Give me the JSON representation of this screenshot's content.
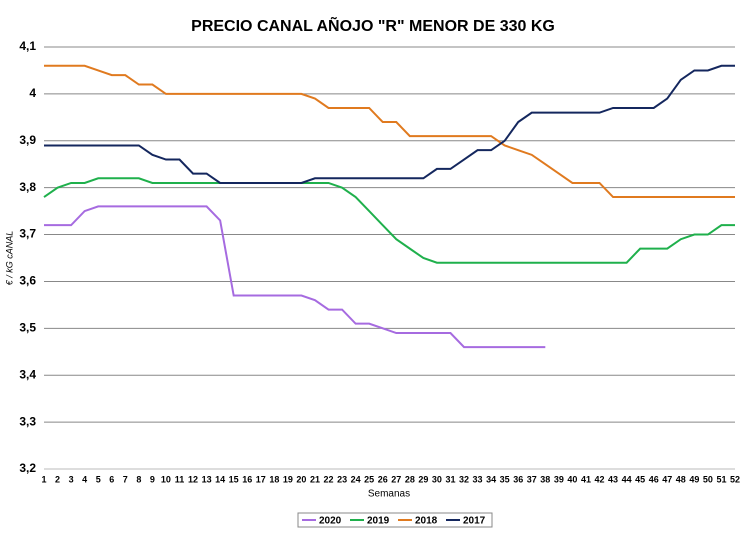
{
  "chart_data": {
    "type": "line",
    "title": "PRECIO CANAL AÑOJO \"R\" MENOR DE 330 KG",
    "x_label": "Semanas",
    "y_label": "€ / kG cANAL",
    "categories": [
      "1",
      "2",
      "3",
      "4",
      "5",
      "6",
      "7",
      "8",
      "9",
      "10",
      "11",
      "12",
      "13",
      "14",
      "15",
      "16",
      "17",
      "18",
      "19",
      "20",
      "21",
      "22",
      "23",
      "24",
      "25",
      "26",
      "27",
      "28",
      "29",
      "30",
      "31",
      "32",
      "33",
      "34",
      "35",
      "36",
      "37",
      "38",
      "39",
      "40",
      "41",
      "42",
      "43",
      "44",
      "45",
      "46",
      "47",
      "48",
      "49",
      "50",
      "51",
      "52"
    ],
    "ylim": [
      3.2,
      4.1
    ],
    "yticks": [
      {
        "value": 3.2,
        "label": "3,2"
      },
      {
        "value": 3.3,
        "label": "3,3"
      },
      {
        "value": 3.4,
        "label": "3,4"
      },
      {
        "value": 3.5,
        "label": "3,5"
      },
      {
        "value": 3.6,
        "label": "3,6"
      },
      {
        "value": 3.7,
        "label": "3,7"
      },
      {
        "value": 3.8,
        "label": "3,8"
      },
      {
        "value": 3.9,
        "label": "3,9"
      },
      4,
      {
        "value": 4.1,
        "label": "4,1"
      }
    ],
    "grid": true,
    "legend": "bottom",
    "series": [
      {
        "name": "2020",
        "color": "#a66be0",
        "values": [
          3.72,
          3.72,
          3.72,
          3.75,
          3.76,
          3.76,
          3.76,
          3.76,
          3.76,
          3.76,
          3.76,
          3.76,
          3.76,
          3.73,
          3.57,
          3.57,
          3.57,
          3.57,
          3.57,
          3.57,
          3.56,
          3.54,
          3.54,
          3.51,
          3.51,
          3.5,
          3.49,
          3.49,
          3.49,
          3.49,
          3.49,
          3.46,
          3.46,
          3.46,
          3.46,
          3.46,
          3.46,
          3.46,
          null,
          null,
          null,
          null,
          null,
          null,
          null,
          null,
          null,
          null,
          null,
          null,
          null,
          null
        ]
      },
      {
        "name": "2019",
        "color": "#1fb04c",
        "values": [
          3.78,
          3.8,
          3.81,
          3.81,
          3.82,
          3.82,
          3.82,
          3.82,
          3.81,
          3.81,
          3.81,
          3.81,
          3.81,
          3.81,
          3.81,
          3.81,
          3.81,
          3.81,
          3.81,
          3.81,
          3.81,
          3.81,
          3.8,
          3.78,
          3.75,
          3.72,
          3.69,
          3.67,
          3.65,
          3.64,
          3.64,
          3.64,
          3.64,
          3.64,
          3.64,
          3.64,
          3.64,
          3.64,
          3.64,
          3.64,
          3.64,
          3.64,
          3.64,
          3.64,
          3.67,
          3.67,
          3.67,
          3.69,
          3.7,
          3.7,
          3.72,
          3.72
        ]
      },
      {
        "name": "2018",
        "color": "#e07a1f",
        "values": [
          4.06,
          4.06,
          4.06,
          4.06,
          4.05,
          4.04,
          4.04,
          4.02,
          4.02,
          4.0,
          4.0,
          4.0,
          4.0,
          4.0,
          4.0,
          4.0,
          4.0,
          4.0,
          4.0,
          4.0,
          3.99,
          3.97,
          3.97,
          3.97,
          3.97,
          3.94,
          3.94,
          3.91,
          3.91,
          3.91,
          3.91,
          3.91,
          3.91,
          3.91,
          3.89,
          3.88,
          3.87,
          3.85,
          3.83,
          3.81,
          3.81,
          3.81,
          3.78,
          3.78,
          3.78,
          3.78,
          3.78,
          3.78,
          3.78,
          3.78,
          3.78,
          3.78
        ]
      },
      {
        "name": "2017",
        "color": "#14275e",
        "values": [
          3.89,
          3.89,
          3.89,
          3.89,
          3.89,
          3.89,
          3.89,
          3.89,
          3.87,
          3.86,
          3.86,
          3.83,
          3.83,
          3.81,
          3.81,
          3.81,
          3.81,
          3.81,
          3.81,
          3.81,
          3.82,
          3.82,
          3.82,
          3.82,
          3.82,
          3.82,
          3.82,
          3.82,
          3.82,
          3.84,
          3.84,
          3.86,
          3.88,
          3.88,
          3.9,
          3.94,
          3.96,
          3.96,
          3.96,
          3.96,
          3.96,
          3.96,
          3.97,
          3.97,
          3.97,
          3.97,
          3.99,
          4.03,
          4.05,
          4.05,
          4.06,
          4.06
        ]
      }
    ]
  }
}
